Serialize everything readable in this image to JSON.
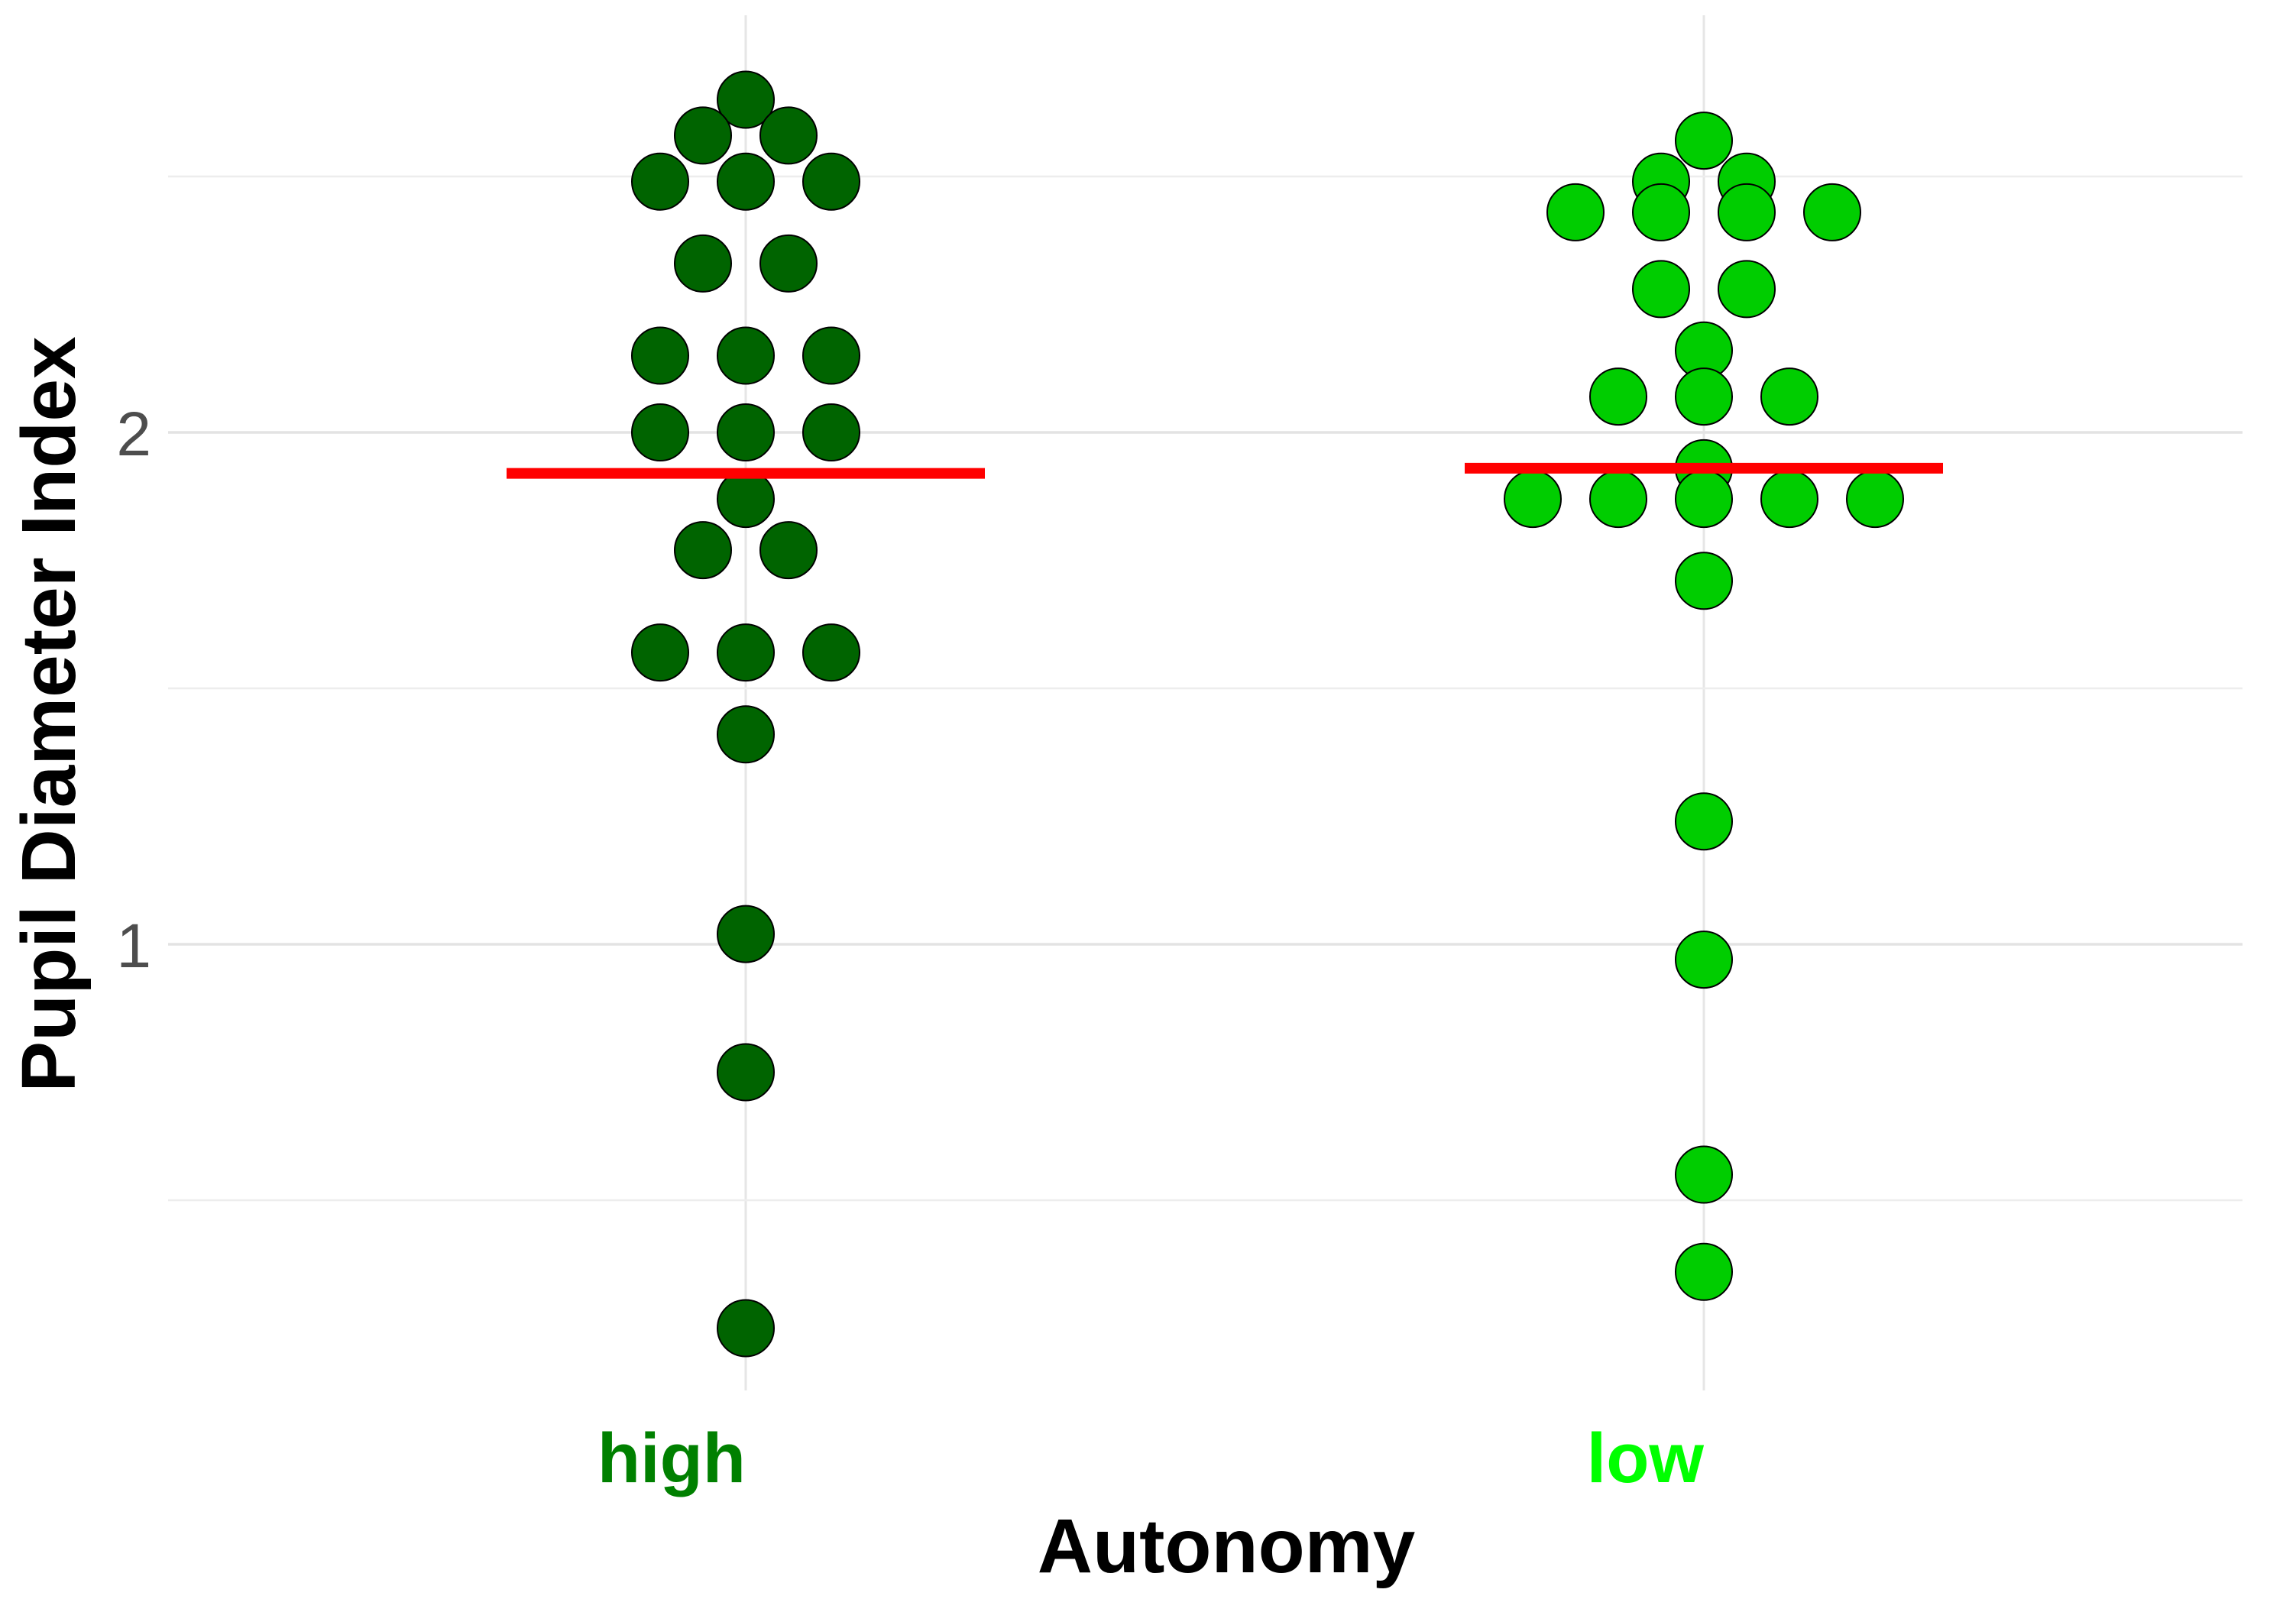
{
  "chart_data": {
    "type": "scatter",
    "subtype": "dot-strip",
    "title": "",
    "xlabel": "Autonomy",
    "ylabel": "Pupil Diameter Index",
    "categories": [
      "high",
      "low"
    ],
    "category_label_colors": [
      "#008000",
      "#00ff00"
    ],
    "point_colors": [
      "#006400",
      "#00cd00"
    ],
    "ylim": [
      0.2,
      2.7
    ],
    "yticks": [
      1,
      2
    ],
    "minor_gridlines": [
      0.5,
      1.5,
      2.5
    ],
    "grid": true,
    "legend": "none",
    "series": [
      {
        "name": "high",
        "values": [
          2.65,
          2.58,
          2.58,
          2.49,
          2.49,
          2.49,
          2.33,
          2.33,
          2.15,
          2.15,
          2.15,
          2.0,
          2.0,
          2.0,
          1.87,
          1.77,
          1.77,
          1.57,
          1.57,
          1.57,
          1.41,
          1.02,
          0.75,
          0.25
        ],
        "mean": 1.92,
        "offsets": [
          0,
          -1,
          1,
          -2,
          0,
          2,
          -1,
          1,
          -2,
          0,
          2,
          -2,
          0,
          2,
          0,
          -1,
          1,
          -2,
          0,
          2,
          0,
          0,
          0,
          0
        ]
      },
      {
        "name": "low",
        "values": [
          2.57,
          2.49,
          2.49,
          2.43,
          2.43,
          2.43,
          2.43,
          2.28,
          2.28,
          2.16,
          2.07,
          2.07,
          2.07,
          1.93,
          1.87,
          1.87,
          1.87,
          1.87,
          1.87,
          1.71,
          1.24,
          0.97,
          0.55,
          0.36
        ],
        "mean": 1.93,
        "offsets": [
          0,
          -1,
          1,
          -3,
          -1,
          1,
          3,
          -1,
          1,
          0,
          -2,
          0,
          2,
          0,
          -4,
          -2,
          0,
          2,
          4,
          0,
          0,
          0,
          0,
          0
        ]
      }
    ],
    "mean_line_color": "#ff0000"
  }
}
